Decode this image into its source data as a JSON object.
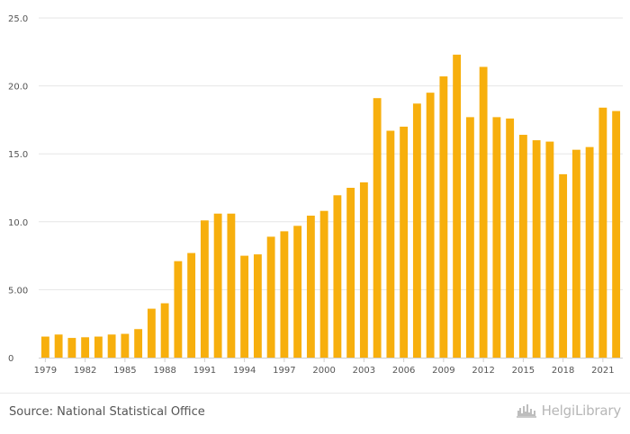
{
  "chart_data": {
    "type": "bar",
    "categories": [
      "1979",
      "1980",
      "1981",
      "1982",
      "1983",
      "1984",
      "1985",
      "1986",
      "1987",
      "1988",
      "1989",
      "1990",
      "1991",
      "1992",
      "1993",
      "1994",
      "1995",
      "1996",
      "1997",
      "1998",
      "1999",
      "2000",
      "2001",
      "2002",
      "2003",
      "2004",
      "2005",
      "2006",
      "2007",
      "2008",
      "2009",
      "2010",
      "2011",
      "2012",
      "2013",
      "2014",
      "2015",
      "2016",
      "2017",
      "2018",
      "2019",
      "2020",
      "2021",
      "2022"
    ],
    "values": [
      1.55,
      1.7,
      1.45,
      1.5,
      1.55,
      1.7,
      1.75,
      2.1,
      3.6,
      4.0,
      7.1,
      7.7,
      10.1,
      10.6,
      10.6,
      7.5,
      7.6,
      8.9,
      9.3,
      9.7,
      10.45,
      10.8,
      11.95,
      12.5,
      12.9,
      19.1,
      16.7,
      17.0,
      18.7,
      19.5,
      20.7,
      22.3,
      17.7,
      21.4,
      17.7,
      17.6,
      16.4,
      16.0,
      15.9,
      13.5,
      15.3,
      15.5,
      18.4,
      18.15
    ],
    "ylim": [
      0,
      25
    ],
    "y_ticks": [
      "0",
      "5.00",
      "10.0",
      "15.0",
      "20.0",
      "25.0"
    ],
    "x_tick_labels": [
      "1979",
      "1982",
      "1985",
      "1988",
      "1991",
      "1994",
      "1997",
      "2000",
      "2003",
      "2006",
      "2009",
      "2012",
      "2015",
      "2018",
      "2021"
    ],
    "grid": "horizontal",
    "bar_color": "#F7AF0D",
    "xlabel": "",
    "ylabel": ""
  },
  "footer": {
    "source": "Source: National Statistical Office",
    "brand": "HelgiLibrary",
    "brand_icon": "helgi-library-logo-icon"
  }
}
